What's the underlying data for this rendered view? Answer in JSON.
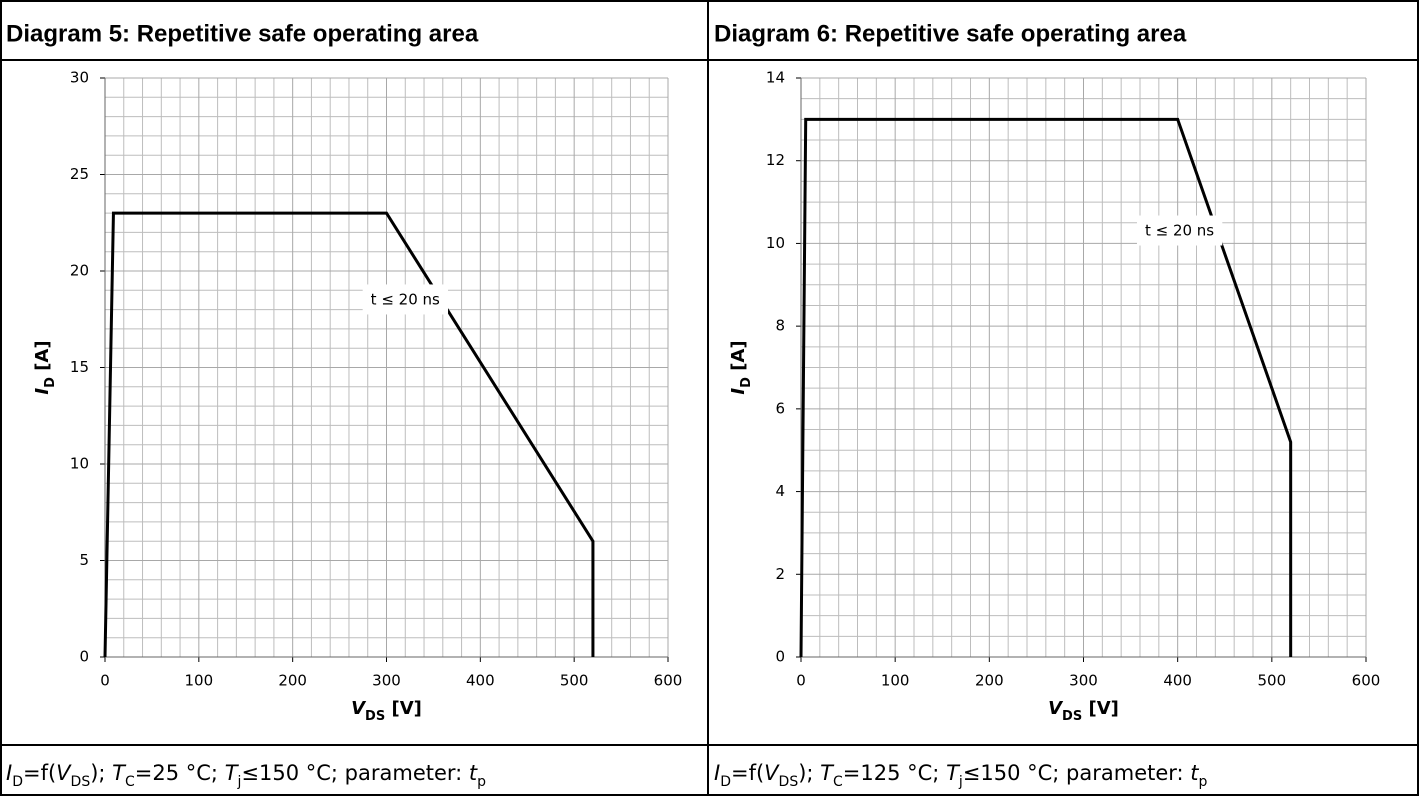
{
  "chart_data": [
    {
      "type": "line",
      "title": "Diagram 5: Repetitive safe operating area",
      "x": [
        0,
        9,
        300,
        520,
        520
      ],
      "values": [
        0,
        23,
        23,
        6,
        0
      ],
      "color": "#000000",
      "xlim": [
        0,
        600
      ],
      "xticks": [
        0,
        100,
        200,
        300,
        400,
        500,
        600
      ],
      "ylim": [
        0,
        30
      ],
      "yticks": [
        0,
        5,
        10,
        15,
        20,
        25,
        30
      ],
      "grid": true,
      "minor_grid": [
        5,
        5
      ],
      "xlabel": {
        "main": "V",
        "sub": "DS",
        "unit": "[V]"
      },
      "ylabel": {
        "main": "I",
        "sub": "D",
        "unit": "[A]"
      },
      "annotation": {
        "text": "t ≤ 20 ns",
        "x": 320,
        "y": 18.5
      },
      "caption": [
        {
          "text": "I",
          "style": "i"
        },
        {
          "text": "D",
          "style": "sub"
        },
        {
          "text": "=f(",
          "style": "n"
        },
        {
          "text": "V",
          "style": "i"
        },
        {
          "text": "DS",
          "style": "sub"
        },
        {
          "text": "); ",
          "style": "n"
        },
        {
          "text": "T",
          "style": "i"
        },
        {
          "text": "C",
          "style": "sub"
        },
        {
          "text": "=25 °C; ",
          "style": "n"
        },
        {
          "text": "T",
          "style": "i"
        },
        {
          "text": "j",
          "style": "sub"
        },
        {
          "text": "≤150 °C; parameter: ",
          "style": "n"
        },
        {
          "text": "t",
          "style": "i"
        },
        {
          "text": "p",
          "style": "sub"
        }
      ]
    },
    {
      "type": "line",
      "title": "Diagram 6: Repetitive safe operating area",
      "x": [
        0,
        5,
        400,
        520,
        520
      ],
      "values": [
        0,
        13,
        13,
        5.2,
        0
      ],
      "color": "#000000",
      "xlim": [
        0,
        600
      ],
      "xticks": [
        0,
        100,
        200,
        300,
        400,
        500,
        600
      ],
      "ylim": [
        0,
        14
      ],
      "yticks": [
        0,
        2,
        4,
        6,
        8,
        10,
        12,
        14
      ],
      "grid": true,
      "minor_grid": [
        5,
        4
      ],
      "xlabel": {
        "main": "V",
        "sub": "DS",
        "unit": "[V]"
      },
      "ylabel": {
        "main": "I",
        "sub": "D",
        "unit": "[A]"
      },
      "annotation": {
        "text": "t ≤ 20 ns",
        "x": 402,
        "y": 10.3
      },
      "caption": [
        {
          "text": "I",
          "style": "i"
        },
        {
          "text": "D",
          "style": "sub"
        },
        {
          "text": "=f(",
          "style": "n"
        },
        {
          "text": "V",
          "style": "i"
        },
        {
          "text": "DS",
          "style": "sub"
        },
        {
          "text": "); ",
          "style": "n"
        },
        {
          "text": "T",
          "style": "i"
        },
        {
          "text": "C",
          "style": "sub"
        },
        {
          "text": "=125 °C; ",
          "style": "n"
        },
        {
          "text": "T",
          "style": "i"
        },
        {
          "text": "j",
          "style": "sub"
        },
        {
          "text": "≤150 °C; parameter: ",
          "style": "n"
        },
        {
          "text": "t",
          "style": "i"
        },
        {
          "text": "p",
          "style": "sub"
        }
      ]
    }
  ]
}
